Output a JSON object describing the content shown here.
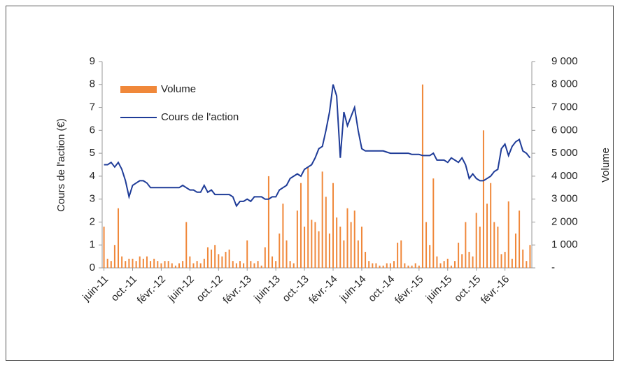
{
  "chart_data": {
    "type": "bar-line",
    "categories": [
      "juin-11",
      null,
      null,
      null,
      null,
      null,
      null,
      null,
      "oct.-11",
      null,
      null,
      null,
      null,
      null,
      null,
      null,
      "févr.-12",
      null,
      null,
      null,
      null,
      null,
      null,
      null,
      "juin-12",
      null,
      null,
      null,
      null,
      null,
      null,
      null,
      "oct.-12",
      null,
      null,
      null,
      null,
      null,
      null,
      null,
      "févr.-13",
      null,
      null,
      null,
      null,
      null,
      null,
      null,
      "juin-13",
      null,
      null,
      null,
      null,
      null,
      null,
      null,
      "oct.-13",
      null,
      null,
      null,
      null,
      null,
      null,
      null,
      "févr.-14",
      null,
      null,
      null,
      null,
      null,
      null,
      null,
      "juin-14",
      null,
      null,
      null,
      null,
      null,
      null,
      null,
      "oct.-14",
      null,
      null,
      null,
      null,
      null,
      null,
      null,
      "févr.-15",
      null,
      null,
      null,
      null,
      null,
      null,
      null,
      "juin-15",
      null,
      null,
      null,
      null,
      null,
      null,
      null,
      "oct.-15",
      null,
      null,
      null,
      null,
      null,
      null,
      null,
      "févr.-16",
      null,
      null,
      null,
      null,
      null,
      null,
      null
    ],
    "series": [
      {
        "name": "Volume",
        "type": "bar",
        "axis": "y2",
        "color": "#f0883a",
        "values": [
          1800,
          400,
          300,
          1000,
          2600,
          500,
          300,
          400,
          400,
          300,
          500,
          400,
          500,
          300,
          400,
          300,
          200,
          300,
          300,
          200,
          100,
          200,
          300,
          2000,
          500,
          200,
          300,
          200,
          400,
          900,
          800,
          1000,
          600,
          500,
          700,
          800,
          300,
          200,
          300,
          200,
          1200,
          300,
          200,
          300,
          100,
          900,
          4000,
          500,
          300,
          1500,
          2800,
          1200,
          300,
          200,
          2500,
          3700,
          1800,
          4400,
          2100,
          2000,
          1600,
          4200,
          3100,
          1500,
          3700,
          2200,
          1800,
          1200,
          2600,
          2000,
          2500,
          1200,
          1800,
          700,
          300,
          200,
          200,
          100,
          100,
          200,
          200,
          300,
          1100,
          1200,
          200,
          100,
          100,
          200,
          100,
          8000,
          2000,
          1000,
          3900,
          500,
          200,
          300,
          400,
          100,
          300,
          1100,
          600,
          2000,
          700,
          500,
          2400,
          1800,
          6000,
          2800,
          3700,
          2000,
          1800,
          600,
          700,
          2900,
          400,
          1500,
          2500,
          800,
          300,
          1000
        ]
      },
      {
        "name": "Cours de l'action",
        "type": "line",
        "color": "#1f3c98",
        "values": [
          4.5,
          4.5,
          4.6,
          4.4,
          4.6,
          4.3,
          3.8,
          3.1,
          3.6,
          3.7,
          3.8,
          3.8,
          3.7,
          3.5,
          3.5,
          3.5,
          3.5,
          3.5,
          3.5,
          3.5,
          3.5,
          3.5,
          3.6,
          3.5,
          3.4,
          3.4,
          3.3,
          3.3,
          3.6,
          3.3,
          3.4,
          3.2,
          3.2,
          3.2,
          3.2,
          3.2,
          3.1,
          2.7,
          2.9,
          2.9,
          3.0,
          2.9,
          3.1,
          3.1,
          3.1,
          3.0,
          3.0,
          3.1,
          3.1,
          3.4,
          3.5,
          3.6,
          3.9,
          4.0,
          4.1,
          4.0,
          4.3,
          4.4,
          4.5,
          4.8,
          5.2,
          5.3,
          6.0,
          6.8,
          8.0,
          7.5,
          4.8,
          6.8,
          6.2,
          6.6,
          7.0,
          6.0,
          5.2,
          5.1,
          5.1,
          5.1,
          5.1,
          5.1,
          5.1,
          5.05,
          5.0,
          5.0,
          5.0,
          5.0,
          5.0,
          5.0,
          4.95,
          4.95,
          4.95,
          4.9,
          4.9,
          4.9,
          5.0,
          4.7,
          4.7,
          4.7,
          4.6,
          4.8,
          4.7,
          4.6,
          4.8,
          4.5,
          3.9,
          4.1,
          3.9,
          3.8,
          3.8,
          3.9,
          4.0,
          4.2,
          4.3,
          5.2,
          5.4,
          4.9,
          5.3,
          5.5,
          5.6,
          5.1,
          5.0,
          4.8
        ]
      }
    ],
    "y_label": "Cours de l'action (€)",
    "y2_label": "Volume",
    "ylim": [
      0,
      9
    ],
    "yticks": [
      0,
      1,
      2,
      3,
      4,
      5,
      6,
      7,
      8,
      9
    ],
    "y2lim": [
      0,
      9000
    ],
    "y2ticks": [
      {
        "value": 0,
        "label": "-"
      },
      {
        "value": 1000,
        "label": "1 000"
      },
      {
        "value": 2000,
        "label": "2 000"
      },
      {
        "value": 3000,
        "label": "3 000"
      },
      {
        "value": 4000,
        "label": "4 000"
      },
      {
        "value": 5000,
        "label": "5 000"
      },
      {
        "value": 6000,
        "label": "6 000"
      },
      {
        "value": 7000,
        "label": "7 000"
      },
      {
        "value": 8000,
        "label": "8 000"
      },
      {
        "value": 9000,
        "label": "9 000"
      }
    ],
    "legend": "top-left"
  }
}
